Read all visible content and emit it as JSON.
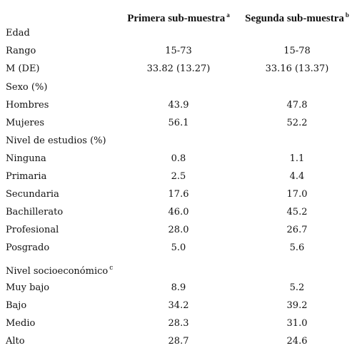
{
  "table": {
    "columns": [
      {
        "text": "Primera sub-muestra",
        "sup": "a"
      },
      {
        "text": "Segunda sub-muestra",
        "sup": "b"
      }
    ],
    "rows": [
      {
        "label": "Edad"
      },
      {
        "label": "Rango",
        "values": [
          "15-73",
          "15-78"
        ]
      },
      {
        "label": "M (DE)",
        "values": [
          "33.82 (13.27)",
          "33.16 (13.37)"
        ]
      },
      {
        "label": "Sexo (%)"
      },
      {
        "label": "Hombres",
        "values": [
          "43.9",
          "47.8"
        ]
      },
      {
        "label": "Mujeres",
        "values": [
          "56.1",
          "52.2"
        ]
      },
      {
        "label": "Nivel de estudios (%)"
      },
      {
        "label": "Ninguna",
        "values": [
          "0.8",
          "1.1"
        ]
      },
      {
        "label": "Primaria",
        "values": [
          "2.5",
          "4.4"
        ]
      },
      {
        "label": "Secundaria",
        "values": [
          "17.6",
          "17.0"
        ]
      },
      {
        "label": "Bachillerato",
        "values": [
          "46.0",
          "45.2"
        ]
      },
      {
        "label": "Profesional",
        "values": [
          "28.0",
          "26.7"
        ]
      },
      {
        "label": "Posgrado",
        "values": [
          "5.0",
          "5.6"
        ]
      },
      {
        "label": "Nivel socioeconómico",
        "sup": "c"
      },
      {
        "label": "Muy bajo",
        "values": [
          "8.9",
          "5.2"
        ]
      },
      {
        "label": "Bajo",
        "values": [
          "34.2",
          "39.2"
        ]
      },
      {
        "label": "Medio",
        "values": [
          "28.3",
          "31.0"
        ]
      },
      {
        "label": "Alto",
        "values": [
          "28.7",
          "24.6"
        ]
      }
    ]
  }
}
